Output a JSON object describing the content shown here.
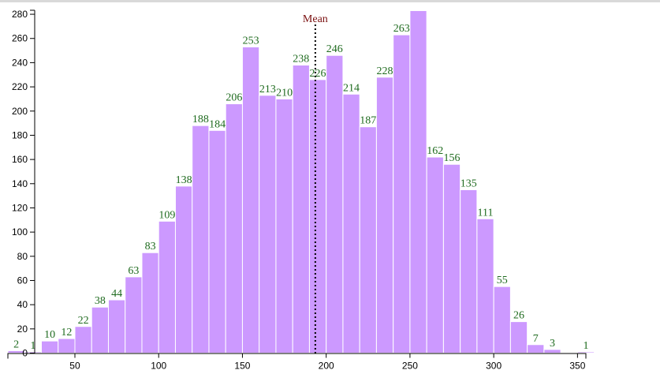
{
  "chart_data": {
    "type": "bar",
    "title": "",
    "xlabel": "",
    "ylabel": "",
    "bin_width": 10,
    "bin_starts": [
      10,
      20,
      30,
      40,
      50,
      60,
      70,
      80,
      90,
      100,
      110,
      120,
      130,
      140,
      150,
      160,
      170,
      180,
      190,
      200,
      210,
      220,
      230,
      240,
      250,
      260,
      270,
      280,
      290,
      300,
      310,
      320,
      330,
      340,
      350
    ],
    "values": [
      2,
      1,
      10,
      12,
      22,
      38,
      44,
      63,
      83,
      109,
      138,
      188,
      184,
      206,
      253,
      213,
      210,
      238,
      226,
      246,
      214,
      187,
      228,
      263,
      283,
      162,
      156,
      135,
      111,
      55,
      26,
      7,
      3,
      0,
      1
    ],
    "labels": [
      "2",
      "1",
      "10",
      "12",
      "22",
      "38",
      "44",
      "63",
      "83",
      "109",
      "138",
      "188",
      "184",
      "206",
      "253",
      "213",
      "210",
      "238",
      "226",
      "246",
      "214",
      "187",
      "228",
      "263",
      "",
      "162",
      "156",
      "135",
      "111",
      "55",
      "26",
      "7",
      "3",
      "",
      "1"
    ],
    "xlim": [
      10,
      355
    ],
    "ylim": [
      0,
      282
    ],
    "x_ticks": [
      "50",
      "100",
      "150",
      "200",
      "250",
      "300",
      "350"
    ],
    "x_tick_values": [
      50,
      100,
      150,
      200,
      250,
      300,
      350
    ],
    "y_ticks": [
      "0",
      "20",
      "40",
      "60",
      "80",
      "100",
      "120",
      "140",
      "160",
      "180",
      "200",
      "220",
      "240",
      "260",
      "280"
    ],
    "y_tick_values": [
      0,
      20,
      40,
      60,
      80,
      100,
      120,
      140,
      160,
      180,
      200,
      220,
      240,
      260,
      280
    ],
    "mean": {
      "label": "Mean",
      "value": 193.5
    },
    "grid": false,
    "colors": {
      "bar": "#cc99ff",
      "bar_stroke": "#ffffff",
      "label": "#1f6b1f",
      "mean_line": "#000000",
      "mean_label": "#7a1010"
    }
  }
}
